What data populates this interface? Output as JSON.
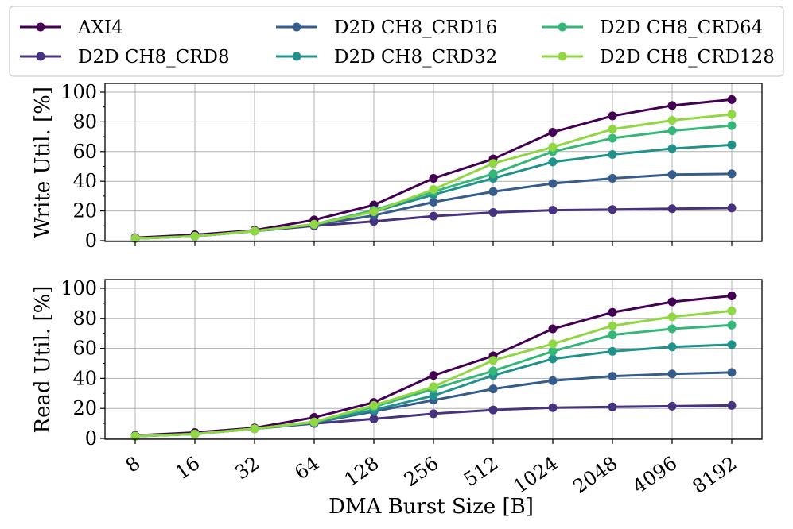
{
  "chart_data": {
    "type": "line",
    "categories": [
      "8",
      "16",
      "32",
      "64",
      "128",
      "256",
      "512",
      "1024",
      "2048",
      "4096",
      "8192"
    ],
    "xlabel": "DMA Burst Size [B]",
    "legend": {
      "position": "top",
      "columns": 3
    },
    "panels": [
      {
        "id": "write",
        "ylabel": "Write Util. [%]",
        "ylim": [
          0,
          100
        ],
        "yticks": [
          0,
          20,
          40,
          60,
          80,
          100
        ],
        "grid": true,
        "series": [
          {
            "name": "AXI4",
            "color": "#440154",
            "values": [
              2,
              4,
              7,
              14,
              24,
              42,
              55,
              73,
              84,
              91,
              95
            ]
          },
          {
            "name": "D2D CH8_CRD8",
            "color": "#46327e",
            "values": [
              1.5,
              3,
              6.5,
              10,
              13,
              16.5,
              19,
              20.5,
              21,
              21.5,
              22
            ]
          },
          {
            "name": "D2D CH8_CRD16",
            "color": "#365c8d",
            "values": [
              1.5,
              3,
              6.5,
              10.5,
              17,
              26,
              33,
              38.5,
              42,
              44.5,
              45
            ]
          },
          {
            "name": "D2D CH8_CRD32",
            "color": "#21918c",
            "values": [
              1.5,
              3,
              6.5,
              11,
              19.5,
              31,
              42,
              53,
              58,
              62,
              64.5
            ]
          },
          {
            "name": "D2D CH8_CRD64",
            "color": "#35b779",
            "values": [
              1.5,
              3,
              6.5,
              11,
              20.5,
              33,
              45,
              60,
              69,
              74,
              77.5
            ]
          },
          {
            "name": "D2D CH8_CRD128",
            "color": "#90d743",
            "values": [
              1.5,
              3,
              6.5,
              11,
              19.5,
              34.5,
              52,
              63,
              75,
              81,
              85
            ]
          }
        ]
      },
      {
        "id": "read",
        "ylabel": "Read Util. [%]",
        "ylim": [
          0,
          100
        ],
        "yticks": [
          0,
          20,
          40,
          60,
          80,
          100
        ],
        "grid": true,
        "series": [
          {
            "name": "AXI4",
            "color": "#440154",
            "values": [
              2,
              4,
              7,
              14,
              24,
              42,
              55,
              73,
              84,
              91,
              95
            ]
          },
          {
            "name": "D2D CH8_CRD8",
            "color": "#46327e",
            "values": [
              1.5,
              3,
              6.5,
              10,
              13,
              16.5,
              19,
              20.5,
              21,
              21.5,
              22
            ]
          },
          {
            "name": "D2D CH8_CRD16",
            "color": "#365c8d",
            "values": [
              1.5,
              3,
              6.5,
              10.5,
              18,
              25.5,
              33,
              38.5,
              41.5,
              43,
              44
            ]
          },
          {
            "name": "D2D CH8_CRD32",
            "color": "#21918c",
            "values": [
              1.5,
              3,
              6.5,
              10.5,
              19,
              28.5,
              42,
              53,
              58,
              61,
              62.5
            ]
          },
          {
            "name": "D2D CH8_CRD64",
            "color": "#35b779",
            "values": [
              1.5,
              3,
              6.5,
              11,
              21,
              33,
              45,
              58,
              69,
              73,
              75.5
            ]
          },
          {
            "name": "D2D CH8_CRD128",
            "color": "#90d743",
            "values": [
              1.5,
              3,
              6.5,
              11,
              22,
              34.5,
              52,
              63,
              75,
              81,
              85
            ]
          }
        ]
      }
    ]
  }
}
